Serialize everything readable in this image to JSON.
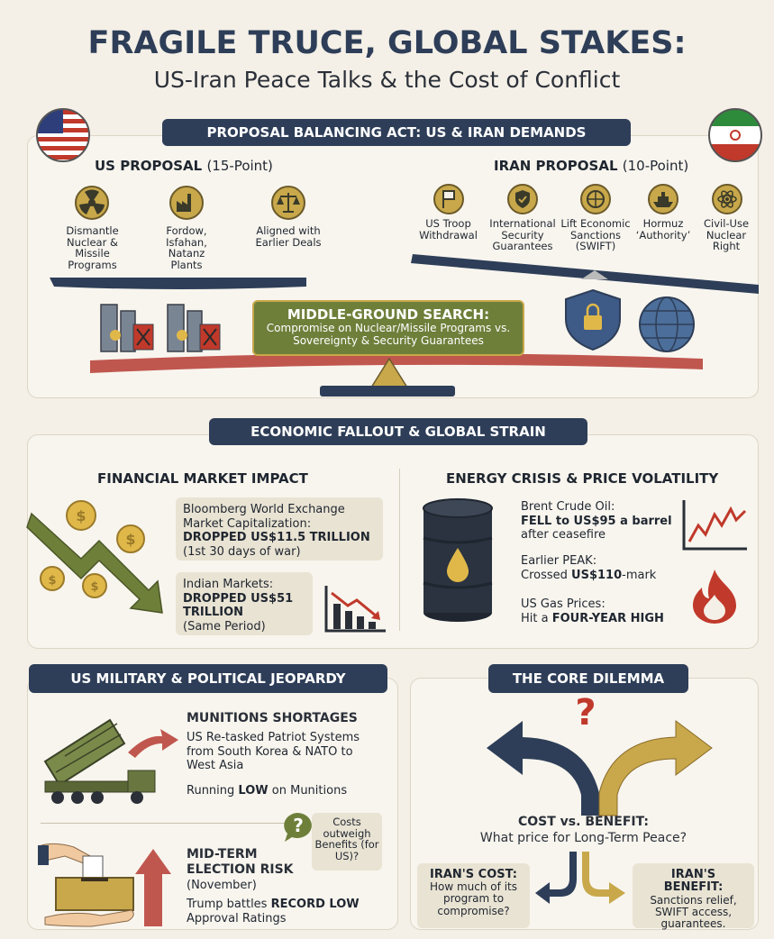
{
  "title": "FRAGILE TRUCE, GLOBAL STAKES:",
  "subtitle": "US-Iran Peace Talks & the Cost of Conflict",
  "proposal": {
    "heading": "PROPOSAL BALANCING ACT: US & IRAN DEMANDS",
    "us": {
      "title": "US PROPOSAL",
      "count": "(15-Point)",
      "items": [
        "Dismantle Nuclear & Missile Programs",
        "Fordow, Isfahan, Natanz Plants",
        "Aligned with Earlier Deals"
      ]
    },
    "iran": {
      "title": "IRAN PROPOSAL",
      "count": "(10-Point)",
      "items": [
        "US Troop Withdrawal",
        "International Security Guarantees",
        "Lift Economic Sanctions (SWIFT)",
        "Hormuz ‘Authority’",
        "Civil-Use Nuclear Right"
      ]
    },
    "middle": {
      "title": "MIDDLE-GROUND SEARCH:",
      "text": "Compromise on Nuclear/Missile Programs vs. Sovereignty & Security Guarantees"
    }
  },
  "economy": {
    "heading": "ECONOMIC FALLOUT & GLOBAL STRAIN",
    "market": {
      "title": "FINANCIAL MARKET IMPACT",
      "global": {
        "label": "Bloomberg World Exchange Market Capitalization:",
        "value": "DROPPED US$11.5 TRILLION",
        "note": "(1st 30 days of war)"
      },
      "india": {
        "label": "Indian Markets:",
        "value": "DROPPED US$51 TRILLION",
        "note": "(Same Period)"
      }
    },
    "energy": {
      "title": "ENERGY CRISIS & PRICE VOLATILITY",
      "brent": {
        "label": "Brent Crude Oil:",
        "value": "FELL to US$95 a barrel",
        "note": "after ceasefire"
      },
      "peak": {
        "label": "Earlier PEAK:",
        "prefix": "Crossed",
        "value": "US$110",
        "suffix": "-mark"
      },
      "gas": {
        "label": "US Gas Prices:",
        "prefix": "Hit a",
        "value": "FOUR-YEAR HIGH"
      }
    }
  },
  "military": {
    "heading": "US MILITARY & POLITICAL JEOPARDY",
    "munitions": {
      "title": "MUNITIONS SHORTAGES",
      "text": "US Re-tasked Patriot Systems from South Korea & NATO to West Asia",
      "prefix": "Running",
      "value": "LOW",
      "suffix": "on Munitions"
    },
    "callout_icon": "?",
    "callout": "Costs outweigh Benefits (for US)?",
    "election": {
      "title": "MID-TERM ELECTION RISK",
      "note": "(November)",
      "prefix": "Trump battles",
      "value": "RECORD LOW",
      "suffix": "Approval Ratings"
    }
  },
  "dilemma": {
    "heading": "THE CORE DILEMMA",
    "mark": "?",
    "title": "COST vs. BENEFIT:",
    "question": "What price for Long-Term Peace?",
    "cost": {
      "title": "IRAN'S COST:",
      "text": "How much of its program to compromise?"
    },
    "benefit": {
      "title": "IRAN'S BENEFIT:",
      "text": "Sanctions relief, SWIFT access, guarantees."
    }
  }
}
